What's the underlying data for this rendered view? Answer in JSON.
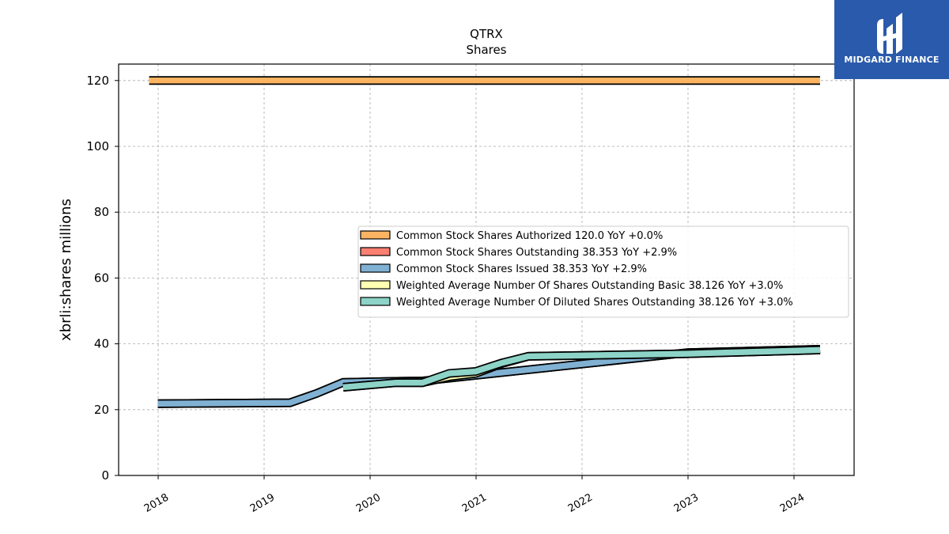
{
  "chart_data": {
    "type": "line",
    "title": "QTRX",
    "subtitle": "Shares",
    "ylabel": "xbrli:shares millions",
    "xlabel": "",
    "ylim": [
      0,
      125
    ],
    "yticks": [
      0,
      20,
      40,
      60,
      80,
      100,
      120
    ],
    "xticks": [
      "2018",
      "2019",
      "2020",
      "2021",
      "2022",
      "2023",
      "2024"
    ],
    "grid": true,
    "legend_position": "center-right",
    "series": [
      {
        "name": "Common Stock Shares Authorized",
        "legend_label": "Common Stock Shares Authorized  120.0 YoY +0.0%",
        "color": "#fdb462",
        "points": [
          [
            "2017-12-01",
            120.0
          ],
          [
            "2024-03-31",
            120.0
          ]
        ]
      },
      {
        "name": "Common Stock Shares Outstanding",
        "legend_label": "Common Stock Shares Outstanding  38.353 YoY +2.9%",
        "color": "#fb8072",
        "points": [
          [
            "2017-12-31",
            21.8
          ],
          [
            "2019-03-31",
            22.1
          ],
          [
            "2019-06-30",
            24.9
          ],
          [
            "2019-09-30",
            28.3
          ],
          [
            "2020-03-31",
            28.6
          ],
          [
            "2020-06-30",
            28.7
          ],
          [
            "2022-12-31",
            37.3
          ],
          [
            "2024-03-31",
            38.35
          ]
        ]
      },
      {
        "name": "Common Stock Shares Issued",
        "legend_label": "Common Stock Shares Issued  38.353 YoY +2.9%",
        "color": "#80b1d3",
        "points": [
          [
            "2017-12-31",
            21.8
          ],
          [
            "2019-03-31",
            22.1
          ],
          [
            "2019-06-30",
            24.9
          ],
          [
            "2019-09-30",
            28.3
          ],
          [
            "2020-03-31",
            28.6
          ],
          [
            "2020-06-30",
            28.7
          ],
          [
            "2022-12-31",
            37.3
          ],
          [
            "2024-03-31",
            38.35
          ]
        ]
      },
      {
        "name": "Weighted Average Number Of Shares Outstanding Basic",
        "legend_label": "Weighted Average Number Of Shares Outstanding Basic  38.126 YoY +3.0%",
        "color": "#ffffb3",
        "points": [
          [
            "2019-09-30",
            26.8
          ],
          [
            "2020-03-31",
            28.2
          ],
          [
            "2020-06-30",
            28.2
          ],
          [
            "2020-09-30",
            30.0
          ],
          [
            "2020-12-31",
            31.0
          ],
          [
            "2021-03-31",
            34.0
          ],
          [
            "2021-06-30",
            36.2
          ],
          [
            "2022-12-31",
            37.0
          ],
          [
            "2024-03-31",
            38.13
          ]
        ]
      },
      {
        "name": "Weighted Average Number Of Diluted Shares Outstanding",
        "legend_label": "Weighted Average Number Of Diluted Shares Outstanding  38.126 YoY +3.0%",
        "color": "#8dd3c7",
        "points": [
          [
            "2019-09-30",
            26.8
          ],
          [
            "2020-03-31",
            28.2
          ],
          [
            "2020-06-30",
            28.2
          ],
          [
            "2020-09-30",
            31.0
          ],
          [
            "2020-12-31",
            31.6
          ],
          [
            "2021-03-31",
            34.2
          ],
          [
            "2021-06-30",
            36.2
          ],
          [
            "2022-12-31",
            37.0
          ],
          [
            "2024-03-31",
            38.13
          ]
        ]
      }
    ]
  },
  "logo": {
    "text": "MIDGARD FINANCE",
    "background": "#2a5aab"
  }
}
